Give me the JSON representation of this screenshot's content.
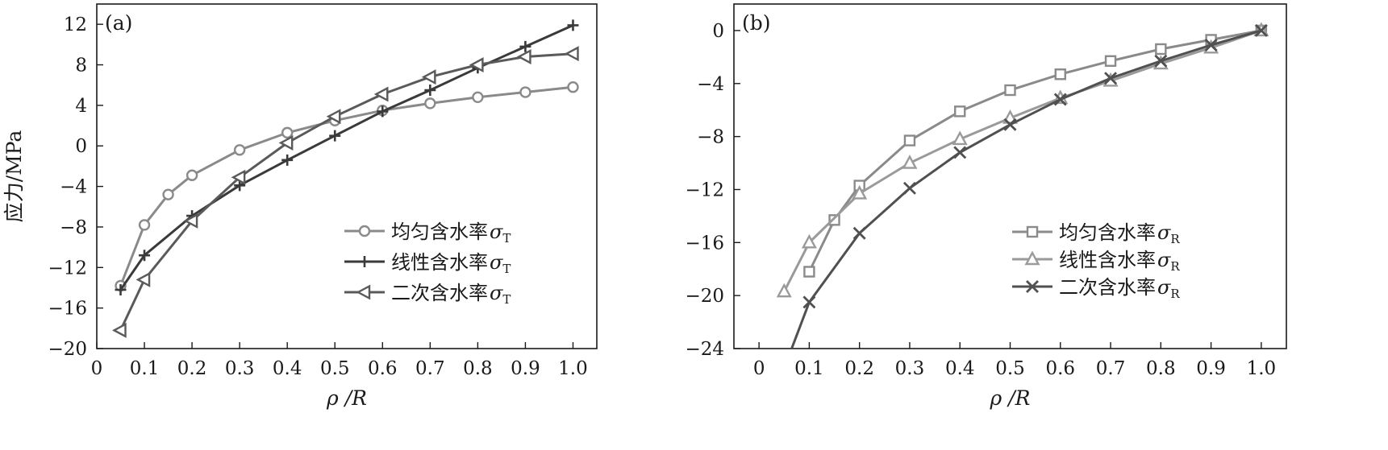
{
  "chart_data": [
    {
      "type": "line",
      "panel_label": "(a)",
      "xlabel": "ρ /R",
      "ylabel": "应力/MPa",
      "xlim": [
        0,
        1.05
      ],
      "ylim": [
        -20,
        14
      ],
      "x_ticks": [
        0,
        0.1,
        0.2,
        0.3,
        0.4,
        0.5,
        0.6,
        0.7,
        0.8,
        0.9,
        1.0
      ],
      "x_tick_labels": [
        "0",
        "0.1",
        "0.2",
        "0.3",
        "0.4",
        "0.5",
        "0.6",
        "0.7",
        "0.8",
        "0.9",
        "1.0"
      ],
      "y_ticks": [
        -20,
        -16,
        -12,
        -8,
        -4,
        0,
        4,
        8,
        12
      ],
      "y_tick_labels": [
        "−20",
        "−16",
        "−12",
        "−8",
        "−4",
        "0",
        "4",
        "8",
        "12"
      ],
      "legend_position": "bottom-right",
      "series": [
        {
          "name": "均匀含水率",
          "symbol": "σ",
          "subscript": "T",
          "marker": "circle",
          "color": "#8a8a8a",
          "x": [
            0.05,
            0.1,
            0.15,
            0.2,
            0.3,
            0.4,
            0.5,
            0.6,
            0.7,
            0.8,
            0.9,
            1.0
          ],
          "y": [
            -13.8,
            -7.8,
            -4.8,
            -2.9,
            -0.4,
            1.3,
            2.5,
            3.5,
            4.2,
            4.8,
            5.3,
            5.8
          ]
        },
        {
          "name": "线性含水率",
          "symbol": "σ",
          "subscript": "T",
          "marker": "plus",
          "color": "#3a3a3a",
          "x": [
            0.05,
            0.1,
            0.2,
            0.3,
            0.4,
            0.5,
            0.6,
            0.7,
            0.8,
            0.9,
            1.0
          ],
          "y": [
            -14.2,
            -10.8,
            -6.9,
            -3.9,
            -1.4,
            1.0,
            3.4,
            5.5,
            7.7,
            9.8,
            11.9
          ]
        },
        {
          "name": "二次含水率",
          "symbol": "σ",
          "subscript": "T",
          "marker": "triangle-left",
          "color": "#5a5a5a",
          "x": [
            0.05,
            0.1,
            0.2,
            0.3,
            0.4,
            0.5,
            0.6,
            0.7,
            0.8,
            0.9,
            1.0
          ],
          "y": [
            -18.2,
            -13.2,
            -7.4,
            -3.1,
            0.3,
            2.9,
            5.1,
            6.8,
            8.0,
            8.8,
            9.1
          ]
        }
      ]
    },
    {
      "type": "line",
      "panel_label": "(b)",
      "xlabel": "ρ /R",
      "ylabel": "",
      "xlim": [
        -0.05,
        1.05
      ],
      "ylim": [
        -24,
        2
      ],
      "x_ticks": [
        0,
        0.1,
        0.2,
        0.3,
        0.4,
        0.5,
        0.6,
        0.7,
        0.8,
        0.9,
        1.0
      ],
      "x_tick_labels": [
        "0",
        "0.1",
        "0.2",
        "0.3",
        "0.4",
        "0.5",
        "0.6",
        "0.7",
        "0.8",
        "0.9",
        "1.0"
      ],
      "y_ticks": [
        -24,
        -20,
        -16,
        -12,
        -8,
        -4,
        0
      ],
      "y_tick_labels": [
        "−24",
        "−20",
        "−16",
        "−12",
        "−8",
        "−4",
        "0"
      ],
      "legend_position": "bottom-right",
      "series": [
        {
          "name": "均匀含水率",
          "symbol": "σ",
          "subscript": "R",
          "marker": "square",
          "color": "#8a8a8a",
          "x": [
            0.1,
            0.15,
            0.2,
            0.3,
            0.4,
            0.5,
            0.6,
            0.7,
            0.8,
            0.9,
            1.0
          ],
          "y": [
            -18.2,
            -14.3,
            -11.7,
            -8.3,
            -6.1,
            -4.5,
            -3.3,
            -2.3,
            -1.4,
            -0.7,
            0.0
          ]
        },
        {
          "name": "线性含水率",
          "symbol": "σ",
          "subscript": "R",
          "marker": "triangle-up",
          "color": "#9a9a9a",
          "x": [
            0.05,
            0.1,
            0.2,
            0.3,
            0.4,
            0.5,
            0.6,
            0.7,
            0.8,
            0.9,
            1.0
          ],
          "y": [
            -19.7,
            -16.0,
            -12.3,
            -10.0,
            -8.2,
            -6.6,
            -5.1,
            -3.8,
            -2.5,
            -1.3,
            0.0
          ]
        },
        {
          "name": "二次含水率",
          "symbol": "σ",
          "subscript": "R",
          "marker": "x",
          "color": "#505050",
          "x": [
            0.065,
            0.1,
            0.2,
            0.3,
            0.4,
            0.5,
            0.6,
            0.7,
            0.8,
            0.9,
            1.0
          ],
          "y": [
            -24.0,
            -20.5,
            -15.3,
            -11.9,
            -9.2,
            -7.1,
            -5.2,
            -3.6,
            -2.3,
            -1.1,
            0.0
          ]
        }
      ]
    }
  ]
}
